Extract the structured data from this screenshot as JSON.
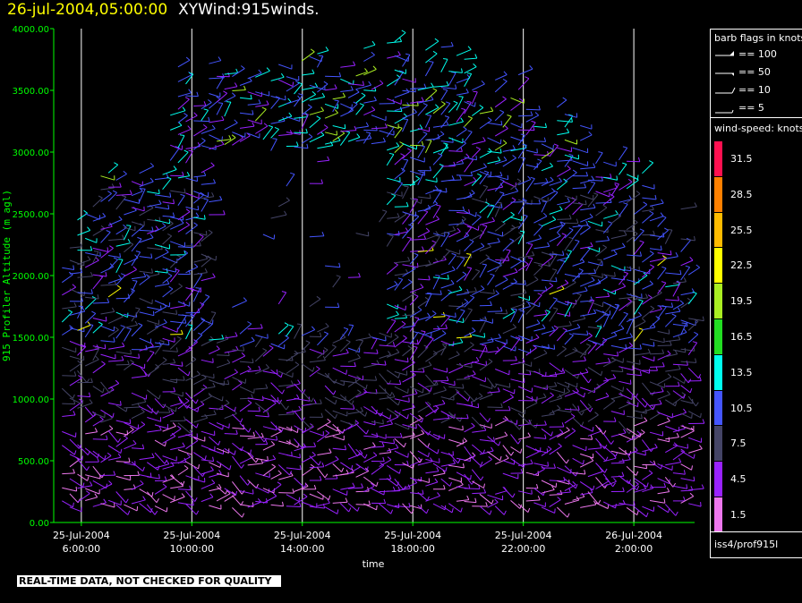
{
  "header": {
    "date": "26-jul-2004,05:00:00",
    "product": "XYWind:915winds."
  },
  "legend": {
    "barb_title": "barb flags in knots",
    "barb_flags": [
      "== 100",
      "== 50",
      "== 10",
      "== 5"
    ],
    "speed_title": "wind-speed: knots",
    "source": "iss4/prof915l"
  },
  "qc_notice": "REAL-TIME DATA, NOT CHECKED FOR QUALITY",
  "colors": {
    "background": "#000000",
    "axis": "#00ff00",
    "gridline": "#ffffff",
    "text": "#ffffff",
    "title_date": "#ffff00"
  },
  "chart_data": {
    "type": "wind-barb time-height",
    "ylabel": "915 Profiler Altitude (m agl)",
    "xlabel": "time",
    "ylim": [
      0,
      4000
    ],
    "yticks": [
      "0.00",
      "500.00",
      "1000.00",
      "1500.00",
      "2000.00",
      "2500.00",
      "3000.00",
      "3500.00",
      "4000.00"
    ],
    "xlim_hours": [
      1.0,
      24.2
    ],
    "xtick_hours": [
      2,
      6,
      10,
      14,
      18,
      22
    ],
    "xtick_dates": [
      "25-Jul-2004",
      "25-Jul-2004",
      "25-Jul-2004",
      "25-Jul-2004",
      "25-Jul-2004",
      "26-Jul-2004"
    ],
    "xtick_times": [
      "6:00:00",
      "10:00:00",
      "14:00:00",
      "18:00:00",
      "22:00:00",
      "2:00:00"
    ],
    "speed_bins": [
      {
        "label": "31.5",
        "color": "#ff1050"
      },
      {
        "label": "28.5",
        "color": "#ff8000"
      },
      {
        "label": "25.5",
        "color": "#ffbb00"
      },
      {
        "label": "22.5",
        "color": "#ffff00"
      },
      {
        "label": "19.5",
        "color": "#aaee22"
      },
      {
        "label": "16.5",
        "color": "#22dd22"
      },
      {
        "label": "13.5",
        "color": "#00ffee"
      },
      {
        "label": "10.5",
        "color": "#4455ff"
      },
      {
        "label": "7.5",
        "color": "#444466"
      },
      {
        "label": "4.5",
        "color": "#9922ff"
      },
      {
        "label": "1.5",
        "color": "#ee77ee"
      }
    ]
  }
}
